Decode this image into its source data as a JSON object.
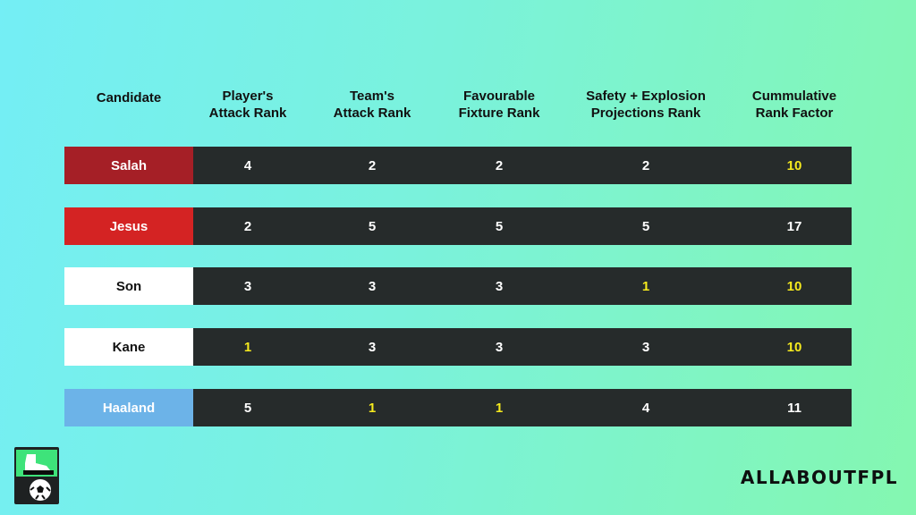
{
  "headers": {
    "candidate": "Candidate",
    "player_attack": "Player's\nAttack Rank",
    "team_attack": "Team's\nAttack Rank",
    "fixture": "Favourable\nFixture Rank",
    "safety": "Safety + Explosion\nProjections Rank",
    "cumulative": "Cummulative\nRank Factor"
  },
  "rows": [
    {
      "name": "Salah",
      "player_attack": "4",
      "team_attack": "2",
      "fixture": "2",
      "safety": "2",
      "cumulative": "10",
      "name_bg": "#a51f26",
      "name_color": "#ffffff",
      "highlight": [
        "cumulative"
      ]
    },
    {
      "name": "Jesus",
      "player_attack": "2",
      "team_attack": "5",
      "fixture": "5",
      "safety": "5",
      "cumulative": "17",
      "name_bg": "#d42323",
      "name_color": "#ffffff",
      "highlight": []
    },
    {
      "name": "Son",
      "player_attack": "3",
      "team_attack": "3",
      "fixture": "3",
      "safety": "1",
      "cumulative": "10",
      "name_bg": "#ffffff",
      "name_color": "#111111",
      "highlight": [
        "safety",
        "cumulative"
      ]
    },
    {
      "name": "Kane",
      "player_attack": "1",
      "team_attack": "3",
      "fixture": "3",
      "safety": "3",
      "cumulative": "10",
      "name_bg": "#ffffff",
      "name_color": "#111111",
      "highlight": [
        "player_attack",
        "cumulative"
      ]
    },
    {
      "name": "Haaland",
      "player_attack": "5",
      "team_attack": "1",
      "fixture": "1",
      "safety": "4",
      "cumulative": "11",
      "name_bg": "#6cb3e8",
      "name_color": "#ffffff",
      "highlight": [
        "team_attack",
        "fixture"
      ]
    }
  ],
  "colors": {
    "highlight": "#f5ea1e",
    "row_bg": "#262b2b"
  },
  "brand": "ALLABOUTFPL",
  "logo_icon": "boot-and-football-icon"
}
